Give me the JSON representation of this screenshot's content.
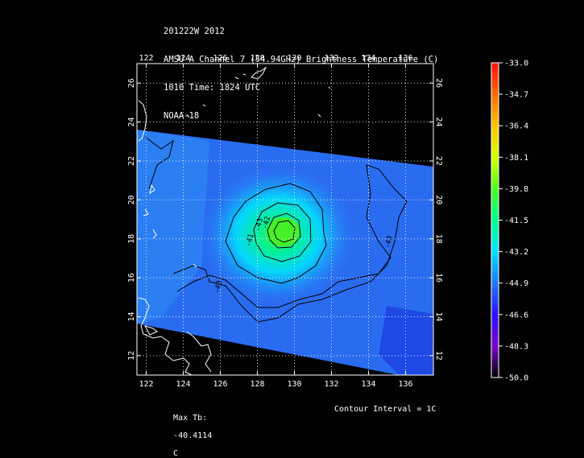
{
  "header": {
    "line1": "201222W 2012",
    "line2": "AMSU-A Channel 7 (54.94GHz) Brightness Temperature (C)",
    "line3": "1010 Time: 1824 UTC",
    "line4": "NOAA-18"
  },
  "map": {
    "lon_ticks": [
      "122",
      "124",
      "126",
      "128",
      "130",
      "132",
      "134",
      "136"
    ],
    "lat_ticks": [
      "12",
      "14",
      "16",
      "18",
      "20",
      "22",
      "24",
      "26"
    ],
    "lon_range": [
      121.5,
      137.5
    ],
    "lat_range": [
      11.0,
      27.0
    ],
    "swath_color": "#2a6cf0",
    "warm_core_center": {
      "lon": 129.3,
      "lat": 18.7
    },
    "contour_labels": [
      {
        "text": "-41",
        "lon": 127.7,
        "lat": 17.9
      },
      {
        "text": "-43",
        "lon": 128.2,
        "lat": 18.7
      },
      {
        "text": "-42",
        "lon": 128.6,
        "lat": 18.8
      },
      {
        "text": "-43",
        "lon": 126.0,
        "lat": 15.5
      },
      {
        "text": "-43",
        "lon": 135.2,
        "lat": 17.8
      }
    ]
  },
  "colorbar": {
    "ticks": [
      "-33.0",
      "-34.7",
      "-36.4",
      "-38.1",
      "-39.8",
      "-41.5",
      "-43.2",
      "-44.9",
      "-46.6",
      "-48.3",
      "-50.0"
    ],
    "colors": [
      "#ff1010",
      "#ff6a00",
      "#ffc400",
      "#d8ff00",
      "#4cff20",
      "#00ff90",
      "#00e0ff",
      "#1e78ff",
      "#2a10ff",
      "#7a00d0",
      "#3a0050",
      "#000000"
    ]
  },
  "footer": {
    "max_tb_label": "Max Tb:",
    "max_tb_value": "-40.4114",
    "max_tb_unit": "C",
    "contour_interval": "Contour Interval = 1C"
  }
}
